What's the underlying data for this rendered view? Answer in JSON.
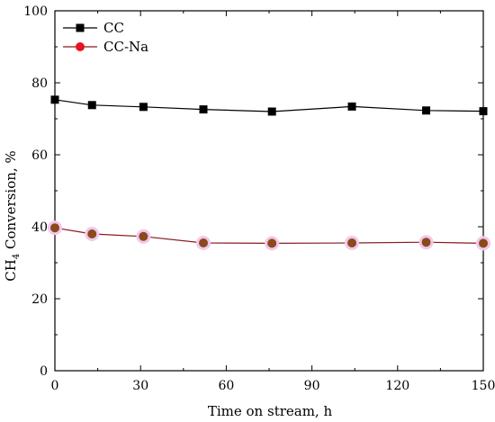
{
  "chart_data": {
    "type": "line",
    "title": "",
    "xlabel": "Time on stream, h",
    "ylabel_main": "CH",
    "ylabel_sub": "4",
    "ylabel_rest": " Conversion, %",
    "xlim": [
      0,
      150
    ],
    "ylim": [
      0,
      100
    ],
    "x_ticks": [
      0,
      30,
      60,
      90,
      120,
      150
    ],
    "y_ticks": [
      0,
      20,
      40,
      60,
      80,
      100
    ],
    "grid": false,
    "legend_position": "top-left",
    "series": [
      {
        "name": "CC",
        "marker": "square",
        "line_color": "#000000",
        "marker_color": "#000000",
        "x": [
          0,
          13,
          31,
          52,
          76,
          104,
          130,
          150
        ],
        "y": [
          75.3,
          73.8,
          73.3,
          72.6,
          72.0,
          73.4,
          72.3,
          72.1
        ]
      },
      {
        "name": "CC-Na",
        "marker": "circle",
        "line_color": "#8b1a1a",
        "marker_color": "#8a4a1a",
        "halo_color": "#f2c8ee",
        "legend_marker_color": "#e8121c",
        "x": [
          0,
          13,
          31,
          52,
          76,
          104,
          130,
          150
        ],
        "y": [
          39.7,
          38.0,
          37.3,
          35.5,
          35.4,
          35.5,
          35.7,
          35.4
        ]
      }
    ]
  }
}
